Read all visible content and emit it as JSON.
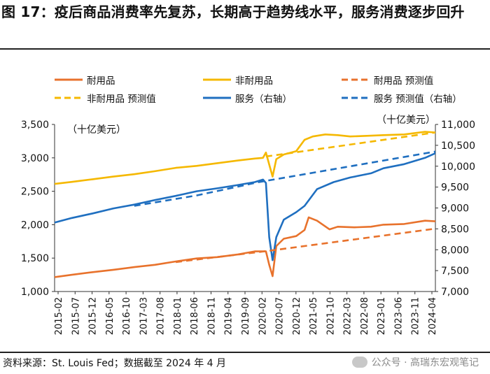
{
  "title": "图 17：疫后商品消费率先复苏，长期高于趋势线水平，服务消费逐步回升",
  "source_note": "资料来源：St. Louis Fed；数据截至 2024 年 4 月",
  "watermark": "公众号 · 高瑞东宏观笔记",
  "colors": {
    "durable": "#E8722C",
    "nondurable": "#F5B800",
    "services": "#1F6FC0",
    "axis": "#333333"
  },
  "chart_data": {
    "type": "line",
    "left_axis_label": "（十亿美元）",
    "right_axis_label": "（十亿美元）",
    "left_ylim": [
      1000,
      3500
    ],
    "left_ticks": [
      "1,000",
      "1,500",
      "2,000",
      "2,500",
      "3,000",
      "3,500"
    ],
    "left_tick_values": [
      1000,
      1500,
      2000,
      2500,
      3000,
      3500
    ],
    "right_ylim": [
      7000,
      11000
    ],
    "right_ticks": [
      "7,000",
      "7,500",
      "8,000",
      "8,500",
      "9,000",
      "9,500",
      "10,000",
      "10,500",
      "11,000"
    ],
    "right_tick_values": [
      7000,
      7500,
      8000,
      8500,
      9000,
      9500,
      10000,
      10500,
      11000
    ],
    "x_ticks": [
      "2015-02",
      "2015-07",
      "2015-12",
      "2016-05",
      "2016-10",
      "2017-03",
      "2017-08",
      "2018-01",
      "2018-06",
      "2018-11",
      "2019-04",
      "2019-09",
      "2020-02",
      "2020-07",
      "2020-12",
      "2021-05",
      "2021-10",
      "2022-03",
      "2022-08",
      "2023-01",
      "2023-06",
      "2023-11",
      "2024-04"
    ],
    "x_range": [
      2015.083,
      2024.25
    ],
    "series": [
      {
        "name": "耐用品",
        "axis": "left",
        "style": "solid",
        "color_key": "durable",
        "points": [
          [
            2015.083,
            1215
          ],
          [
            2015.5,
            1250
          ],
          [
            2016.0,
            1290
          ],
          [
            2016.5,
            1325
          ],
          [
            2017.0,
            1365
          ],
          [
            2017.5,
            1400
          ],
          [
            2018.0,
            1450
          ],
          [
            2018.5,
            1495
          ],
          [
            2019.0,
            1515
          ],
          [
            2019.5,
            1555
          ],
          [
            2019.9,
            1600
          ],
          [
            2020.17,
            1600
          ],
          [
            2020.25,
            1400
          ],
          [
            2020.33,
            1230
          ],
          [
            2020.42,
            1680
          ],
          [
            2020.6,
            1790
          ],
          [
            2020.9,
            1830
          ],
          [
            2021.1,
            1920
          ],
          [
            2021.2,
            2110
          ],
          [
            2021.4,
            2060
          ],
          [
            2021.7,
            1930
          ],
          [
            2021.9,
            1970
          ],
          [
            2022.3,
            1960
          ],
          [
            2022.7,
            1970
          ],
          [
            2023.0,
            2000
          ],
          [
            2023.5,
            2010
          ],
          [
            2024.0,
            2060
          ],
          [
            2024.25,
            2050
          ]
        ]
      },
      {
        "name": "非耐用品",
        "axis": "left",
        "style": "solid",
        "color_key": "nondurable",
        "points": [
          [
            2015.083,
            2610
          ],
          [
            2015.5,
            2640
          ],
          [
            2016.0,
            2680
          ],
          [
            2016.5,
            2720
          ],
          [
            2017.0,
            2755
          ],
          [
            2017.5,
            2800
          ],
          [
            2018.0,
            2850
          ],
          [
            2018.5,
            2880
          ],
          [
            2019.0,
            2920
          ],
          [
            2019.5,
            2960
          ],
          [
            2019.9,
            2990
          ],
          [
            2020.1,
            3000
          ],
          [
            2020.17,
            3080
          ],
          [
            2020.25,
            2900
          ],
          [
            2020.33,
            2720
          ],
          [
            2020.42,
            2980
          ],
          [
            2020.6,
            3050
          ],
          [
            2020.9,
            3100
          ],
          [
            2021.1,
            3270
          ],
          [
            2021.3,
            3320
          ],
          [
            2021.6,
            3350
          ],
          [
            2021.9,
            3340
          ],
          [
            2022.2,
            3320
          ],
          [
            2022.6,
            3330
          ],
          [
            2023.0,
            3340
          ],
          [
            2023.5,
            3350
          ],
          [
            2024.0,
            3390
          ],
          [
            2024.25,
            3380
          ]
        ]
      },
      {
        "name": "服务（右轴）",
        "axis": "right",
        "style": "solid",
        "color_key": "services",
        "points": [
          [
            2015.083,
            8650
          ],
          [
            2015.5,
            8760
          ],
          [
            2016.0,
            8870
          ],
          [
            2016.5,
            8990
          ],
          [
            2017.0,
            9080
          ],
          [
            2017.5,
            9190
          ],
          [
            2018.0,
            9290
          ],
          [
            2018.5,
            9400
          ],
          [
            2019.0,
            9470
          ],
          [
            2019.5,
            9550
          ],
          [
            2019.9,
            9620
          ],
          [
            2020.1,
            9680
          ],
          [
            2020.17,
            9600
          ],
          [
            2020.25,
            8300
          ],
          [
            2020.33,
            7750
          ],
          [
            2020.42,
            8300
          ],
          [
            2020.6,
            8720
          ],
          [
            2020.9,
            8900
          ],
          [
            2021.1,
            9050
          ],
          [
            2021.4,
            9450
          ],
          [
            2021.8,
            9620
          ],
          [
            2022.2,
            9730
          ],
          [
            2022.7,
            9830
          ],
          [
            2023.0,
            9950
          ],
          [
            2023.5,
            10050
          ],
          [
            2024.0,
            10200
          ],
          [
            2024.25,
            10310
          ]
        ]
      },
      {
        "name": "耐用品 预测值",
        "axis": "left",
        "style": "dashed",
        "color_key": "durable",
        "points": [
          [
            2018.0,
            1440
          ],
          [
            2020.25,
            1610
          ],
          [
            2024.25,
            1940
          ]
        ]
      },
      {
        "name": "非耐用品 预测值",
        "axis": "left",
        "style": "dashed",
        "color_key": "nondurable",
        "points": [
          [
            2020.17,
            3020
          ],
          [
            2024.25,
            3380
          ]
        ]
      },
      {
        "name": "服务 预测值（右轴）",
        "axis": "right",
        "style": "dashed",
        "color_key": "services",
        "points": [
          [
            2017.0,
            9050
          ],
          [
            2018.5,
            9300
          ],
          [
            2020.0,
            9620
          ],
          [
            2024.25,
            10350
          ]
        ]
      }
    ]
  },
  "legend": [
    {
      "label": "耐用品",
      "color_key": "durable",
      "style": "solid"
    },
    {
      "label": "非耐用品",
      "color_key": "nondurable",
      "style": "solid"
    },
    {
      "label": "耐用品 预测值",
      "color_key": "durable",
      "style": "dashed"
    },
    {
      "label": "非耐用品 预测值",
      "color_key": "nondurable",
      "style": "dashed"
    },
    {
      "label": "服务（右轴）",
      "color_key": "services",
      "style": "solid"
    },
    {
      "label": "服务 预测值（右轴）",
      "color_key": "services",
      "style": "dashed"
    }
  ]
}
